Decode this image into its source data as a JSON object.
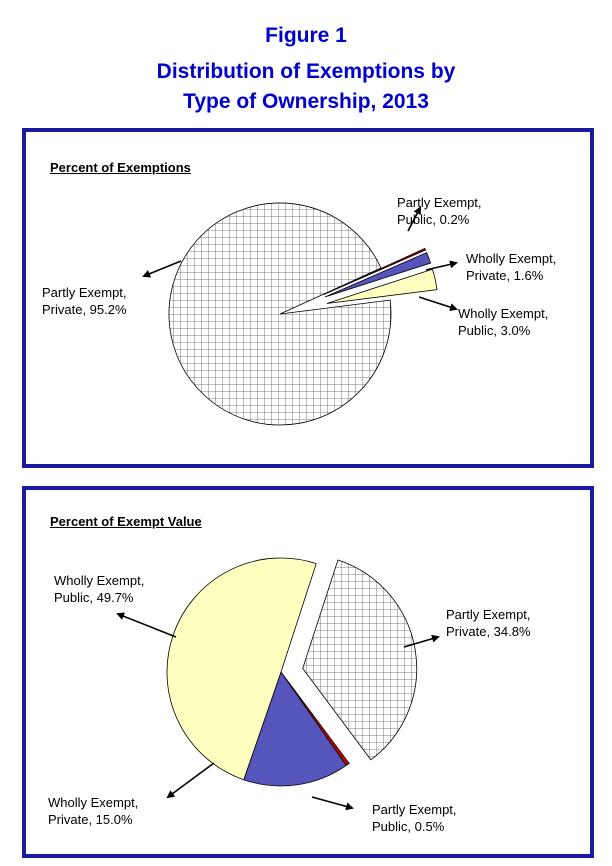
{
  "figure": {
    "number": "Figure 1",
    "title_line1": "Distribution of Exemptions by",
    "title_line2": "Type of Ownership, 2013"
  },
  "colors": {
    "border": "#1a1aa0",
    "title": "#0000cc",
    "partly_private": "#ffffff",
    "partly_public": "#cc0000",
    "wholly_private": "#5555bb",
    "wholly_public": "#ffffc0"
  },
  "chart_data": [
    {
      "type": "pie",
      "title": "Percent of Exemptions",
      "slices": [
        {
          "label_line1": "Partly Exempt,",
          "label_line2": "Private, 95.2%",
          "value": 95.2,
          "fill": "hatch",
          "exploded": false
        },
        {
          "label_line1": "Partly Exempt,",
          "label_line2": "Public, 0.2%",
          "value": 0.2,
          "fill": "#cc0000",
          "exploded": true
        },
        {
          "label_line1": "Wholly Exempt,",
          "label_line2": "Private, 1.6%",
          "value": 1.6,
          "fill": "#5555bb",
          "exploded": true
        },
        {
          "label_line1": "Wholly Exempt,",
          "label_line2": "Public, 3.0%",
          "value": 3.0,
          "fill": "#ffffc0",
          "exploded": true
        }
      ]
    },
    {
      "type": "pie",
      "title": "Percent of Exempt Value",
      "slices": [
        {
          "label_line1": "Partly Exempt,",
          "label_line2": "Private, 34.8%",
          "value": 34.8,
          "fill": "hatch",
          "exploded": true
        },
        {
          "label_line1": "Partly Exempt,",
          "label_line2": "Public, 0.5%",
          "value": 0.5,
          "fill": "#cc0000",
          "exploded": false
        },
        {
          "label_line1": "Wholly Exempt,",
          "label_line2": "Private, 15.0%",
          "value": 15.0,
          "fill": "#5555bb",
          "exploded": false
        },
        {
          "label_line1": "Wholly Exempt,",
          "label_line2": "Public, 49.7%",
          "value": 49.7,
          "fill": "#ffffc0",
          "exploded": false
        }
      ]
    }
  ]
}
